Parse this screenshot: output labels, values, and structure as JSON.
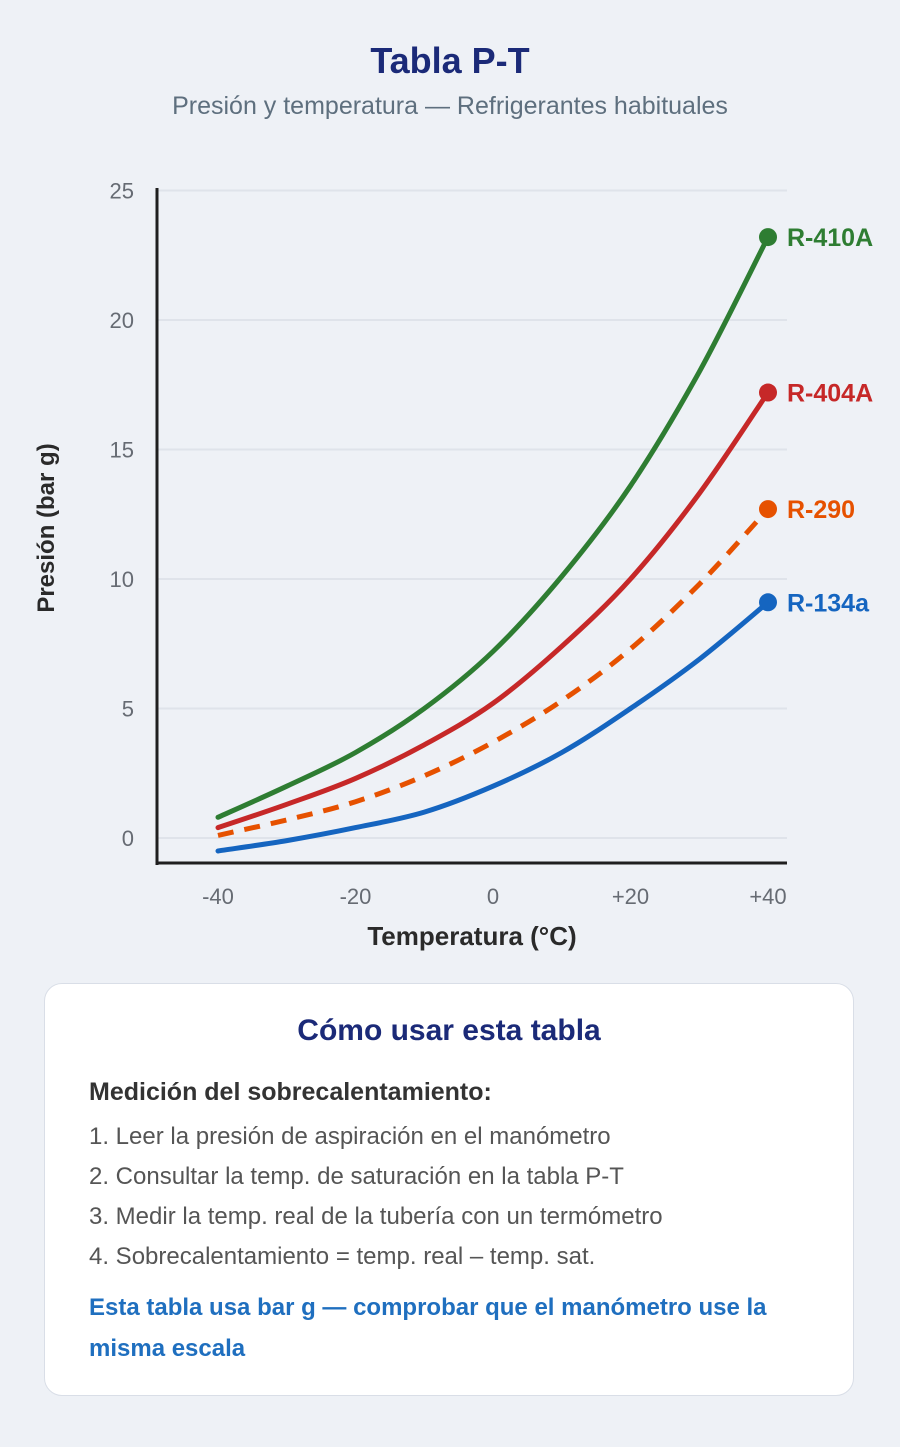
{
  "header": {
    "title": "Tabla P-T",
    "subtitle": "Presión y temperatura — Refrigerantes habituales"
  },
  "chart_data": {
    "type": "line",
    "xlabel": "Temperatura (°C)",
    "ylabel": "Presión (bar g)",
    "xlim": [
      -45,
      45
    ],
    "ylim": [
      -1,
      25
    ],
    "x_ticks": [
      {
        "value": -40,
        "label": "-40"
      },
      {
        "value": -20,
        "label": "-20"
      },
      {
        "value": 0,
        "label": "0"
      },
      {
        "value": 20,
        "label": "+20"
      },
      {
        "value": 40,
        "label": "+40"
      }
    ],
    "y_ticks": [
      {
        "value": 0,
        "label": "0"
      },
      {
        "value": 5,
        "label": "5"
      },
      {
        "value": 10,
        "label": "10"
      },
      {
        "value": 15,
        "label": "15"
      },
      {
        "value": 20,
        "label": "20"
      },
      {
        "value": 25,
        "label": "25"
      }
    ],
    "grid": "horizontal",
    "legend": "end-of-line labels",
    "x": [
      -40,
      -30,
      -20,
      -10,
      0,
      10,
      20,
      30,
      40
    ],
    "series": [
      {
        "name": "R-410A",
        "color": "#2e7d32",
        "dashed": false,
        "values": [
          0.8,
          2.0,
          3.3,
          5.0,
          7.2,
          10.1,
          13.6,
          18.0,
          23.2
        ]
      },
      {
        "name": "R-404A",
        "color": "#c62828",
        "dashed": false,
        "values": [
          0.4,
          1.3,
          2.3,
          3.6,
          5.2,
          7.4,
          10.0,
          13.3,
          17.2
        ]
      },
      {
        "name": "R-290",
        "color": "#e65100",
        "dashed": true,
        "values": [
          0.1,
          0.7,
          1.4,
          2.4,
          3.7,
          5.3,
          7.3,
          9.8,
          12.7
        ]
      },
      {
        "name": "R-134a",
        "color": "#1565c0",
        "dashed": false,
        "values": [
          -0.5,
          -0.1,
          0.4,
          1.0,
          2.0,
          3.3,
          5.0,
          6.9,
          9.1
        ]
      }
    ]
  },
  "card": {
    "title": "Cómo usar esta tabla",
    "heading": "Medición del sobrecalentamiento:",
    "steps": [
      "1. Leer la presión de aspiración en el manómetro",
      "2. Consultar la temp. de saturación en la tabla P-T",
      "3. Medir la temp. real de la tubería con un termómetro",
      "4. Sobrecalentamiento = temp. real – temp. sat."
    ],
    "note": "Esta tabla usa bar g — comprobar que el manómetro use la misma escala"
  }
}
